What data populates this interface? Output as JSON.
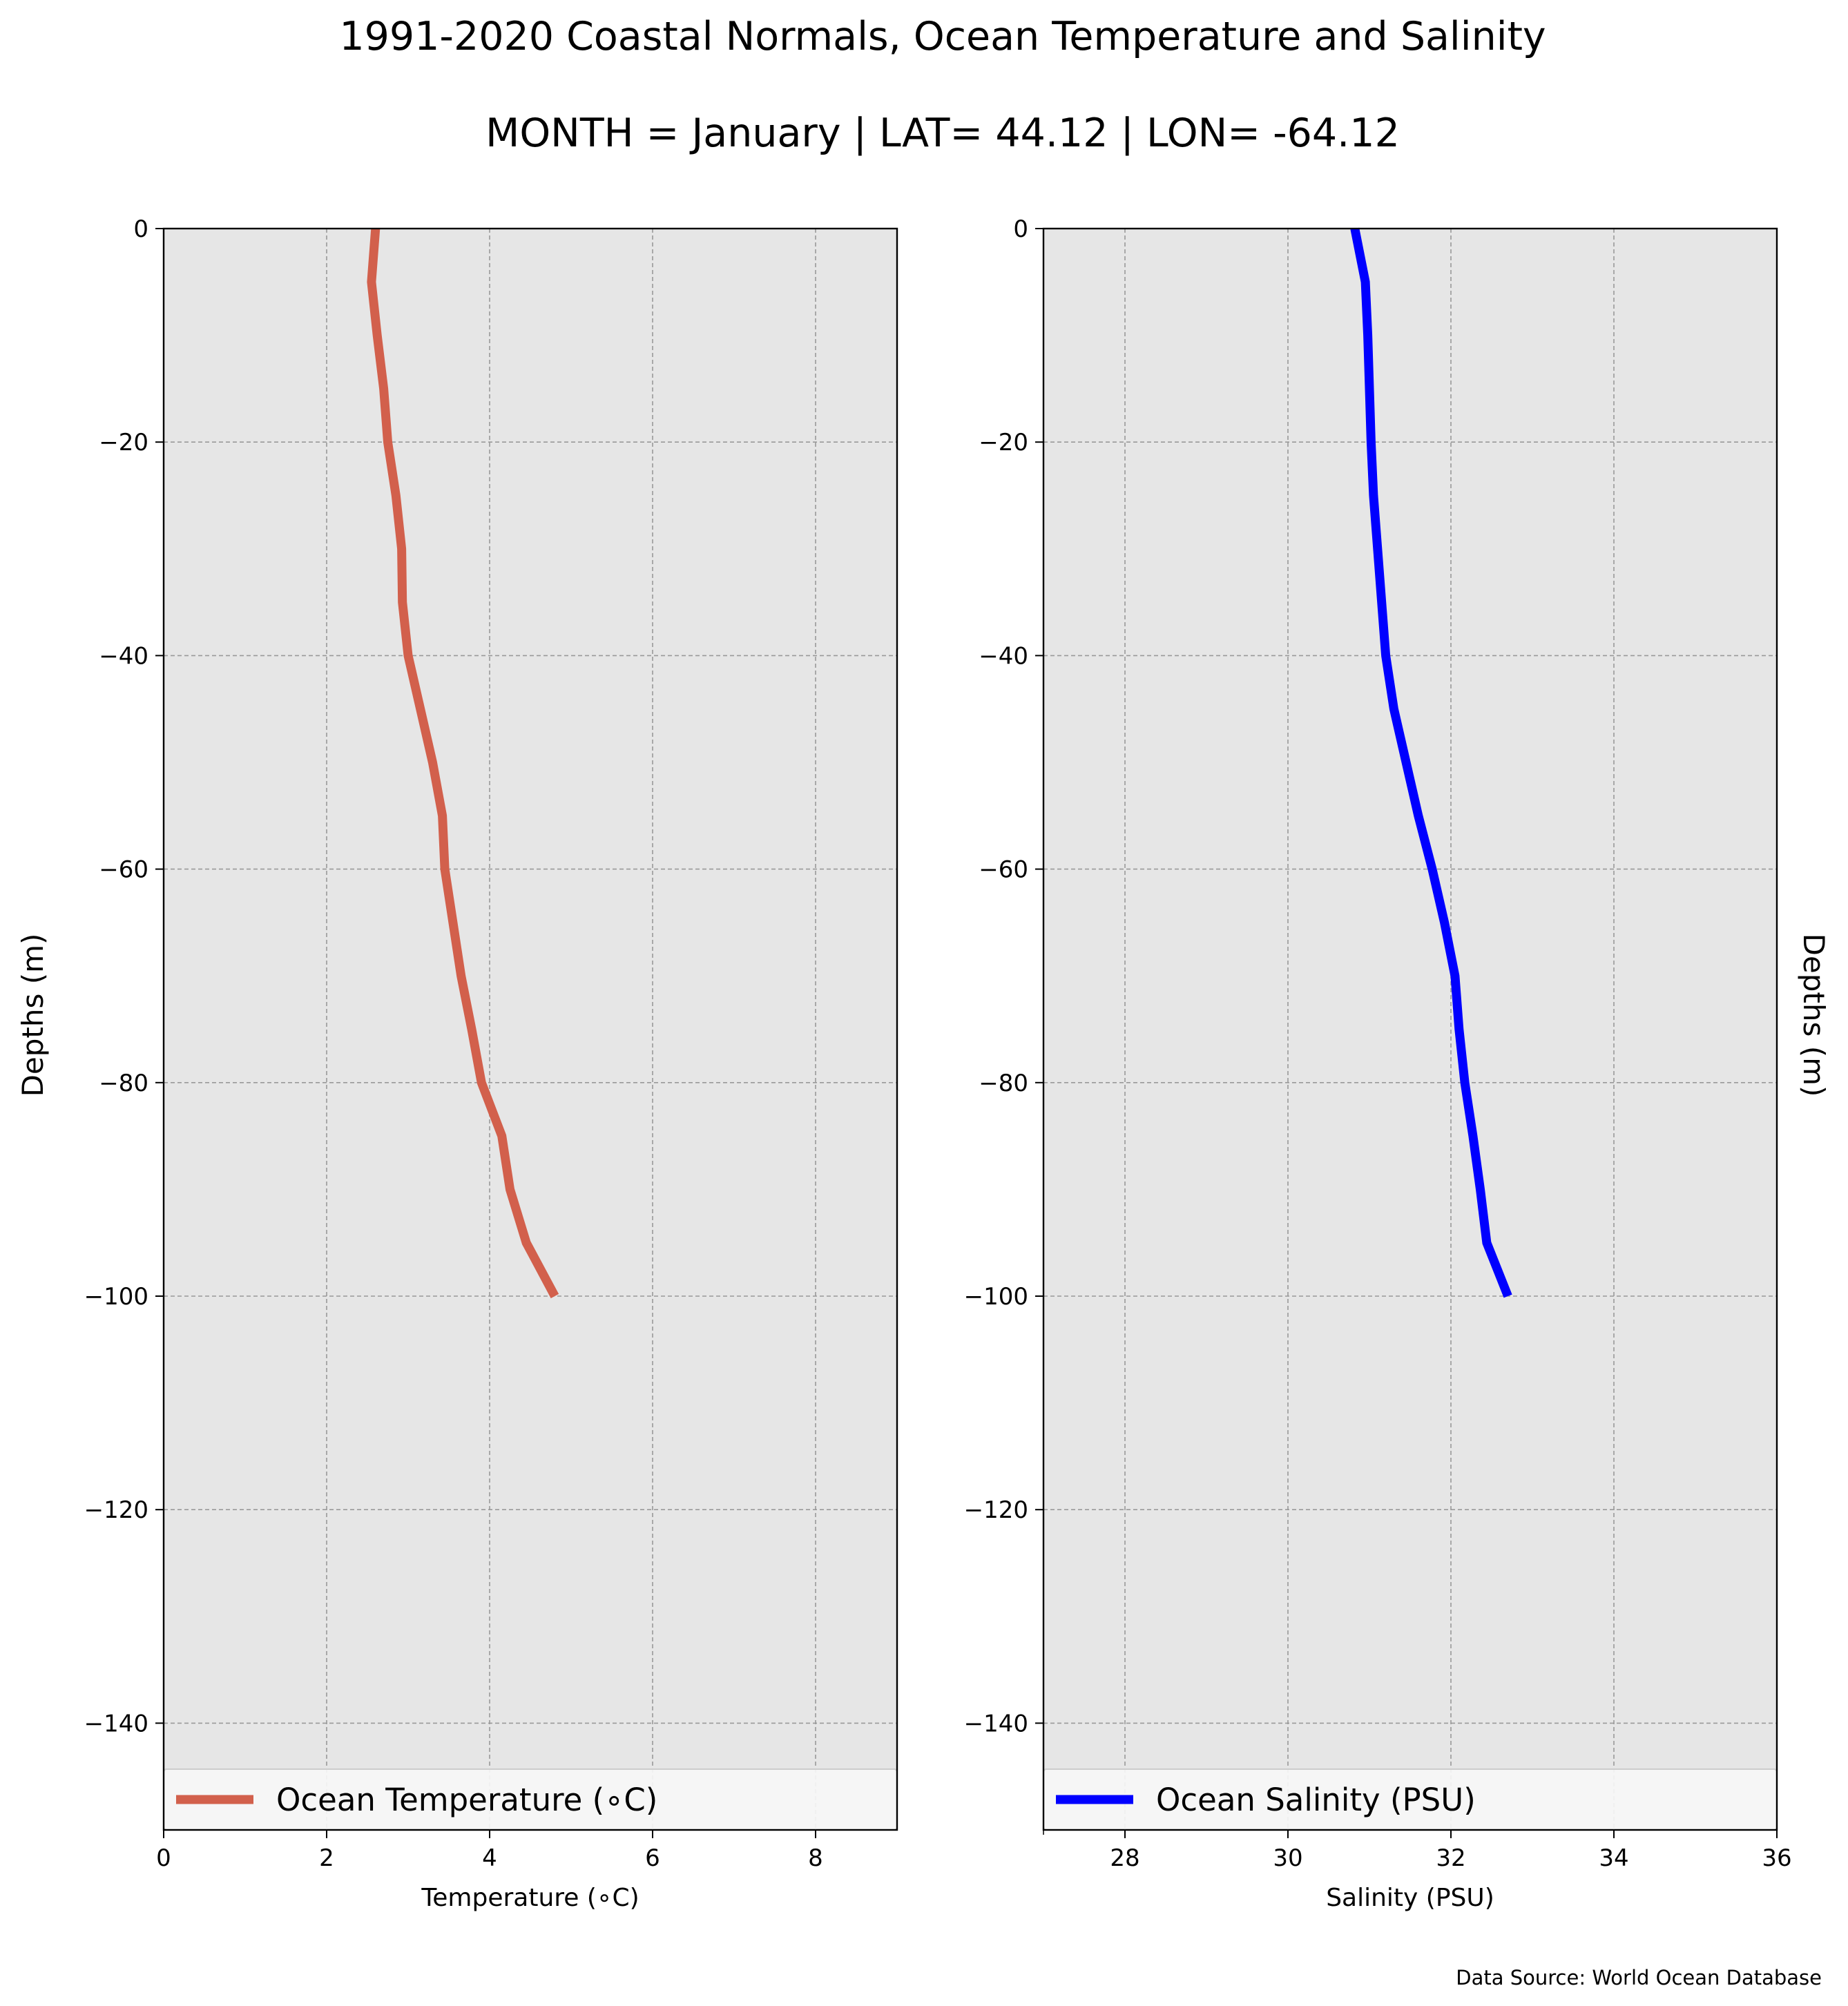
{
  "figure": {
    "title": "1991-2020 Coastal Normals, Ocean Temperature and Salinity",
    "subtitle": "MONTH = January | LAT= 44.12 | LON= -64.12",
    "source": "Data Source: World Ocean Database"
  },
  "colors": {
    "plot_background": "#e6e6e6",
    "grid": "#999999",
    "temperature_line": "#d2604c",
    "salinity_line": "#0000ff"
  },
  "chart_data": [
    {
      "type": "line",
      "orientation": "vertical-profile",
      "xlabel": "Temperature ($^\\circ$C)",
      "xlabel_display": "Temperature (∘C)",
      "ylabel": "Depths (m)",
      "xlim": [
        0,
        9
      ],
      "ylim": [
        -150,
        0
      ],
      "x_ticks": [
        0,
        2,
        4,
        6,
        8
      ],
      "y_ticks": [
        0,
        -20,
        -40,
        -60,
        -80,
        -100,
        -120,
        -140
      ],
      "x_tick_labels": [
        "0",
        "2",
        "4",
        "6",
        "8"
      ],
      "y_tick_labels": [
        "0",
        "−20",
        "−40",
        "−60",
        "−80",
        "−100",
        "−120",
        "−140"
      ],
      "grid": true,
      "legend_position": "bottom",
      "series": [
        {
          "name": "Ocean Temperature ($^\\circ$C)",
          "name_display": "Ocean Temperature (∘C)",
          "color": "#d2604c",
          "x": [
            2.6,
            2.55,
            2.62,
            2.7,
            2.75,
            2.85,
            2.92,
            2.93,
            3.0,
            3.15,
            3.3,
            3.42,
            3.45,
            3.55,
            3.65,
            3.78,
            3.9,
            4.15,
            4.25,
            4.45,
            4.8
          ],
          "y": [
            0,
            -5,
            -10,
            -15,
            -20,
            -25,
            -30,
            -35,
            -40,
            -45,
            -50,
            -55,
            -60,
            -65,
            -70,
            -75,
            -80,
            -85,
            -90,
            -95,
            -100
          ]
        }
      ]
    },
    {
      "type": "line",
      "orientation": "vertical-profile",
      "xlabel": "Salinity (PSU)",
      "ylabel": "Depths (m)",
      "xlim": [
        27,
        36
      ],
      "ylim": [
        -150,
        0
      ],
      "x_ticks": [
        28,
        30,
        32,
        34,
        36
      ],
      "y_ticks": [
        0,
        -20,
        -40,
        -60,
        -80,
        -100,
        -120,
        -140
      ],
      "x_tick_labels": [
        "28",
        "30",
        "32",
        "34",
        "36"
      ],
      "y_tick_labels": [
        "0",
        "−20",
        "−40",
        "−60",
        "−80",
        "−100",
        "−120",
        "−140"
      ],
      "grid": true,
      "legend_position": "bottom",
      "series": [
        {
          "name": "Ocean Salinity (PSU)",
          "color": "#0000ff",
          "x": [
            30.82,
            30.95,
            30.98,
            31.0,
            31.02,
            31.05,
            31.1,
            31.15,
            31.2,
            31.3,
            31.45,
            31.6,
            31.77,
            31.92,
            32.05,
            32.1,
            32.17,
            32.27,
            32.36,
            32.44,
            32.7
          ],
          "y": [
            0,
            -5,
            -10,
            -15,
            -20,
            -25,
            -30,
            -35,
            -40,
            -45,
            -50,
            -55,
            -60,
            -65,
            -70,
            -75,
            -80,
            -85,
            -90,
            -95,
            -100
          ]
        }
      ]
    }
  ]
}
